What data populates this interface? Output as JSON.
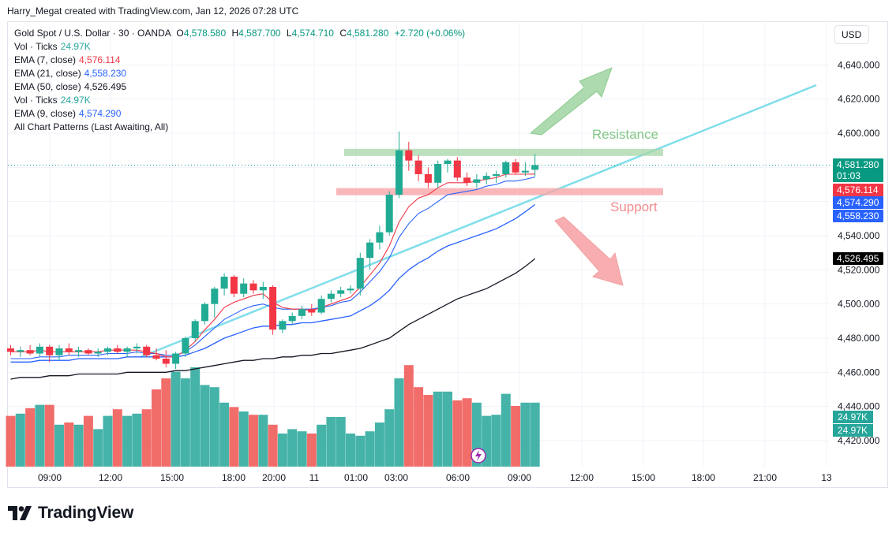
{
  "header": {
    "created_text": "Harry_Megat created with TradingView.com, Jan 12, 2026 07:28 UTC"
  },
  "symbol": {
    "name": "Gold Spot / U.S. Dollar · 30 · OANDA",
    "o_label": "O",
    "o": "4,578.580",
    "h_label": "H",
    "h": "4,587.700",
    "l_label": "L",
    "l": "4,574.710",
    "c_label": "C",
    "c": "4,581.280",
    "change": "+2.720 (+0.06%)"
  },
  "legend": [
    {
      "label": "Vol · Ticks",
      "value": "24.97K",
      "color": "#26a69a"
    },
    {
      "label": "EMA (7, close)",
      "value": "4,576.114",
      "color": "#f23645"
    },
    {
      "label": "EMA (21, close)",
      "value": "4,558.230",
      "color": "#2962ff"
    },
    {
      "label": "EMA (50, close)",
      "value": "4,526.495",
      "color": "#131722"
    },
    {
      "label": "Vol · Ticks",
      "value": "24.97K",
      "color": "#26a69a"
    },
    {
      "label": "EMA (9, close)",
      "value": "4,574.290",
      "color": "#2962ff"
    },
    {
      "label": "All Chart Patterns (Last Awaiting, All)",
      "value": "",
      "color": "#131722"
    }
  ],
  "currency_button": "USD",
  "annotations": {
    "resistance": "Resistance",
    "support": "Support"
  },
  "price_labels": [
    {
      "text": "4,581.280",
      "sub": "01:03",
      "bg": "#089981",
      "fg": "#ffffff",
      "price": 4581.28
    },
    {
      "text": "4,576.114",
      "bg": "#f23645",
      "fg": "#ffffff",
      "price": 4576.114
    },
    {
      "text": "4,574.290",
      "bg": "#2962ff",
      "fg": "#ffffff",
      "price": 4574.29
    },
    {
      "text": "4,558.230",
      "bg": "#2962ff",
      "fg": "#ffffff",
      "price": 4558.23
    },
    {
      "text": "4,526.495",
      "bg": "#000000",
      "fg": "#ffffff",
      "price": 4526.495
    }
  ],
  "volume_labels": [
    "24.97K",
    "24.97K"
  ],
  "footer": {
    "brand": "TradingView"
  },
  "colors": {
    "up": "#26a69a",
    "down": "#ef5350",
    "trend": "#80deea",
    "resistance": "#a5d6a7",
    "support": "#f8a5a8"
  },
  "chart_data": {
    "type": "candlestick",
    "y_ticks": [
      "4,640.000",
      "4,620.000",
      "4,600.000",
      "4,580.000",
      "4,560.000",
      "4,540.000",
      "4,520.000",
      "4,500.000",
      "4,480.000",
      "4,460.000",
      "4,440.000",
      "4,420.000"
    ],
    "y_tick_values": [
      4640,
      4620,
      4600,
      4580,
      4560,
      4540,
      4520,
      4500,
      4480,
      4460,
      4440,
      4420
    ],
    "x_ticks": [
      "09:00",
      "12:00",
      "15:00",
      "18:00",
      "20:00",
      "11",
      "01:00",
      "03:00",
      "06:00",
      "09:00",
      "12:00",
      "15:00",
      "18:00",
      "21:00",
      "13"
    ],
    "ylim": [
      4410,
      4650
    ],
    "candles": [
      [
        4474,
        4476,
        4470,
        4472
      ],
      [
        4472,
        4475,
        4469,
        4473
      ],
      [
        4473,
        4476,
        4470,
        4471
      ],
      [
        4471,
        4477,
        4469,
        4475
      ],
      [
        4475,
        4476,
        4466,
        4470
      ],
      [
        4470,
        4476,
        4467,
        4474
      ],
      [
        4474,
        4477,
        4470,
        4472
      ],
      [
        4472,
        4475,
        4469,
        4473
      ],
      [
        4473,
        4474,
        4470,
        4471
      ],
      [
        4471,
        4474,
        4469,
        4472
      ],
      [
        4472,
        4475,
        4470,
        4474
      ],
      [
        4474,
        4476,
        4471,
        4472
      ],
      [
        4472,
        4475,
        4469,
        4474
      ],
      [
        4474,
        4477,
        4471,
        4475
      ],
      [
        4475,
        4476,
        4469,
        4470
      ],
      [
        4470,
        4474,
        4467,
        4468
      ],
      [
        4468,
        4473,
        4463,
        4465
      ],
      [
        4465,
        4472,
        4462,
        4471
      ],
      [
        4471,
        4481,
        4469,
        4480
      ],
      [
        4480,
        4491,
        4478,
        4490
      ],
      [
        4490,
        4501,
        4488,
        4500
      ],
      [
        4500,
        4510,
        4492,
        4509
      ],
      [
        4509,
        4518,
        4505,
        4516
      ],
      [
        4516,
        4517,
        4504,
        4506
      ],
      [
        4506,
        4515,
        4504,
        4512
      ],
      [
        4512,
        4514,
        4506,
        4508
      ],
      [
        4508,
        4513,
        4503,
        4510
      ],
      [
        4510,
        4511,
        4482,
        4485
      ],
      [
        4485,
        4491,
        4483,
        4490
      ],
      [
        4490,
        4495,
        4488,
        4493
      ],
      [
        4493,
        4499,
        4491,
        4497
      ],
      [
        4497,
        4500,
        4493,
        4495
      ],
      [
        4495,
        4505,
        4494,
        4503
      ],
      [
        4503,
        4508,
        4501,
        4506
      ],
      [
        4506,
        4510,
        4504,
        4508
      ],
      [
        4508,
        4511,
        4506,
        4509
      ],
      [
        4509,
        4530,
        4505,
        4527
      ],
      [
        4527,
        4538,
        4520,
        4536
      ],
      [
        4536,
        4546,
        4532,
        4542
      ],
      [
        4542,
        4566,
        4540,
        4564
      ],
      [
        4564,
        4601,
        4562,
        4590
      ],
      [
        4590,
        4595,
        4578,
        4584
      ],
      [
        4584,
        4587,
        4572,
        4576
      ],
      [
        4576,
        4580,
        4568,
        4571
      ],
      [
        4571,
        4584,
        4568,
        4582
      ],
      [
        4582,
        4585,
        4577,
        4584
      ],
      [
        4584,
        4586,
        4572,
        4574
      ],
      [
        4574,
        4577,
        4569,
        4571
      ],
      [
        4571,
        4576,
        4568,
        4573
      ],
      [
        4573,
        4577,
        4570,
        4575
      ],
      [
        4575,
        4578,
        4571,
        4576
      ],
      [
        4576,
        4584,
        4574,
        4583
      ],
      [
        4583,
        4585,
        4576,
        4577
      ],
      [
        4577,
        4583,
        4575,
        4578
      ],
      [
        4578.58,
        4587.7,
        4574.71,
        4581.28
      ]
    ],
    "volumes": [
      46,
      48,
      53,
      56,
      56,
      38,
      40,
      38,
      46,
      34,
      46,
      52,
      46,
      48,
      52,
      70,
      80,
      86,
      80,
      90,
      74,
      72,
      58,
      54,
      50,
      47,
      47,
      38,
      30,
      34,
      32,
      30,
      38,
      45,
      45,
      30,
      28,
      32,
      40,
      52,
      80,
      92,
      72,
      65,
      68,
      68,
      60,
      62,
      58,
      46,
      47,
      66,
      55,
      58,
      58
    ],
    "ema7": [
      4472,
      4472,
      4472,
      4473,
      4472,
      4472,
      4472,
      4472,
      4472,
      4472,
      4473,
      4473,
      4473,
      4473,
      4472,
      4471,
      4469,
      4469,
      4473,
      4478,
      4485,
      4491,
      4498,
      4501,
      4503,
      4505,
      4506,
      4501,
      4498,
      4497,
      4497,
      4496,
      4498,
      4500,
      4502,
      4504,
      4510,
      4517,
      4524,
      4534,
      4548,
      4557,
      4562,
      4564,
      4568,
      4571,
      4571,
      4571,
      4572,
      4573,
      4574,
      4576,
      4576,
      4576,
      4576.114
    ],
    "ema9": [
      4468,
      4468,
      4468,
      4469,
      4469,
      4469,
      4470,
      4470,
      4470,
      4470,
      4471,
      4471,
      4471,
      4472,
      4471,
      4471,
      4470,
      4470,
      4472,
      4476,
      4481,
      4486,
      4491,
      4494,
      4497,
      4499,
      4500,
      4498,
      4497,
      4497,
      4497,
      4497,
      4498,
      4499,
      4501,
      4502,
      4507,
      4513,
      4519,
      4527,
      4539,
      4547,
      4553,
      4556,
      4560,
      4564,
      4565,
      4566,
      4567,
      4569,
      4570,
      4572,
      4572,
      4573,
      4574.29
    ],
    "ema21": [
      4466,
      4466,
      4466,
      4467,
      4467,
      4467,
      4467,
      4468,
      4468,
      4468,
      4468,
      4468,
      4469,
      4469,
      4469,
      4469,
      4469,
      4469,
      4470,
      4472,
      4474,
      4477,
      4480,
      4482,
      4484,
      4486,
      4487,
      4487,
      4488,
      4488,
      4489,
      4489,
      4490,
      4491,
      4492,
      4493,
      4496,
      4499,
      4503,
      4508,
      4515,
      4520,
      4524,
      4527,
      4531,
      4534,
      4536,
      4538,
      4540,
      4542,
      4544,
      4547,
      4550,
      4554,
      4558.23
    ],
    "ema50": [
      4456,
      4457,
      4457,
      4457,
      4458,
      4458,
      4458,
      4459,
      4459,
      4459,
      4459,
      4459,
      4460,
      4460,
      4460,
      4460,
      4460,
      4461,
      4461,
      4462,
      4463,
      4464,
      4465,
      4466,
      4467,
      4467,
      4468,
      4468,
      4469,
      4469,
      4470,
      4470,
      4471,
      4471,
      4472,
      4473,
      4474,
      4476,
      4478,
      4480,
      4484,
      4488,
      4491,
      4494,
      4497,
      4500,
      4503,
      4505,
      4507,
      4509,
      4512,
      4515,
      4518,
      4522,
      4526.495
    ],
    "resistance_level": 4589,
    "support_level": 4566
  }
}
